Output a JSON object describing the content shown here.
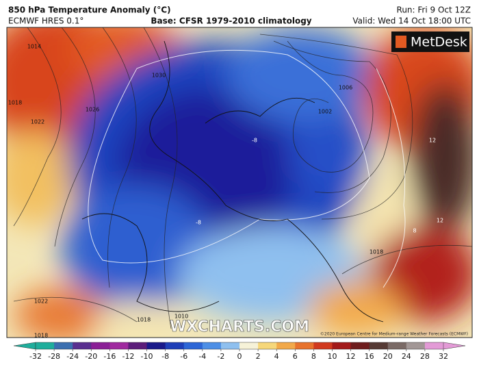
{
  "header": {
    "title": "850 hPa Temperature Anomaly (°C)",
    "model": "ECMWF HRES 0.1°",
    "base": "Base: CFSR 1979-2010 climatology",
    "run": "Run: Fri 9 Oct 12Z",
    "valid": "Valid: Wed 14 Oct 18:00 UTC"
  },
  "brand": "MetDesk",
  "watermark": "WXCHARTS.COM",
  "copyright": "©2020 European Centre for Medium-range Weather Forecasts (ECMWF)",
  "map_labels": [
    "1014",
    "1018",
    "1022",
    "1026",
    "1030",
    "1006",
    "1002",
    "1018",
    "1022",
    "1018",
    "1010",
    "1018",
    "-8",
    "-8",
    "12",
    "12",
    "8"
  ],
  "colorbar": {
    "ticks": [
      -32,
      -28,
      -24,
      -20,
      -16,
      -12,
      -10,
      -8,
      -6,
      -4,
      -2,
      0,
      2,
      4,
      6,
      8,
      10,
      12,
      16,
      20,
      24,
      28,
      32
    ],
    "colors": [
      "#1fae9c",
      "#3b6fb0",
      "#5a2f8f",
      "#8b1f96",
      "#a02a9f",
      "#5c1d7a",
      "#1a1a8a",
      "#1f3fb8",
      "#2d66d6",
      "#4d8fe6",
      "#8fc0ef",
      "#f6f2d8",
      "#f6d77a",
      "#f2a94a",
      "#e8732d",
      "#d13a1f",
      "#a31a1a",
      "#6e1d1d",
      "#553a34",
      "#7a6a66",
      "#a29796",
      "#e39ad6"
    ]
  }
}
